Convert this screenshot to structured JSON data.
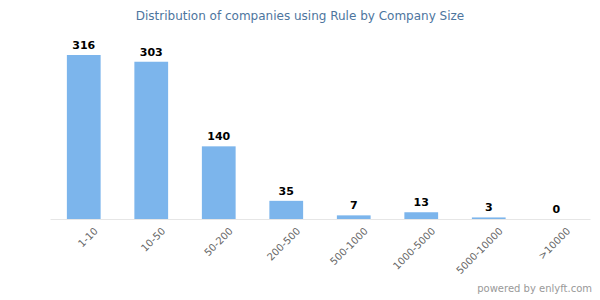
{
  "chart_data": {
    "type": "bar",
    "title": "Distribution of companies using Rule by Company Size",
    "categories": [
      "1-10",
      "10-50",
      "50-200",
      "200-500",
      "500-1000",
      "1000-5000",
      "5000-10000",
      ">10000"
    ],
    "values": [
      316,
      303,
      140,
      35,
      7,
      13,
      3,
      0
    ],
    "color": "#7cb5ec",
    "ylim": [
      0,
      316
    ],
    "data_labels": true,
    "tick_labels": "x",
    "annotation": "powered by enlyft.com"
  }
}
